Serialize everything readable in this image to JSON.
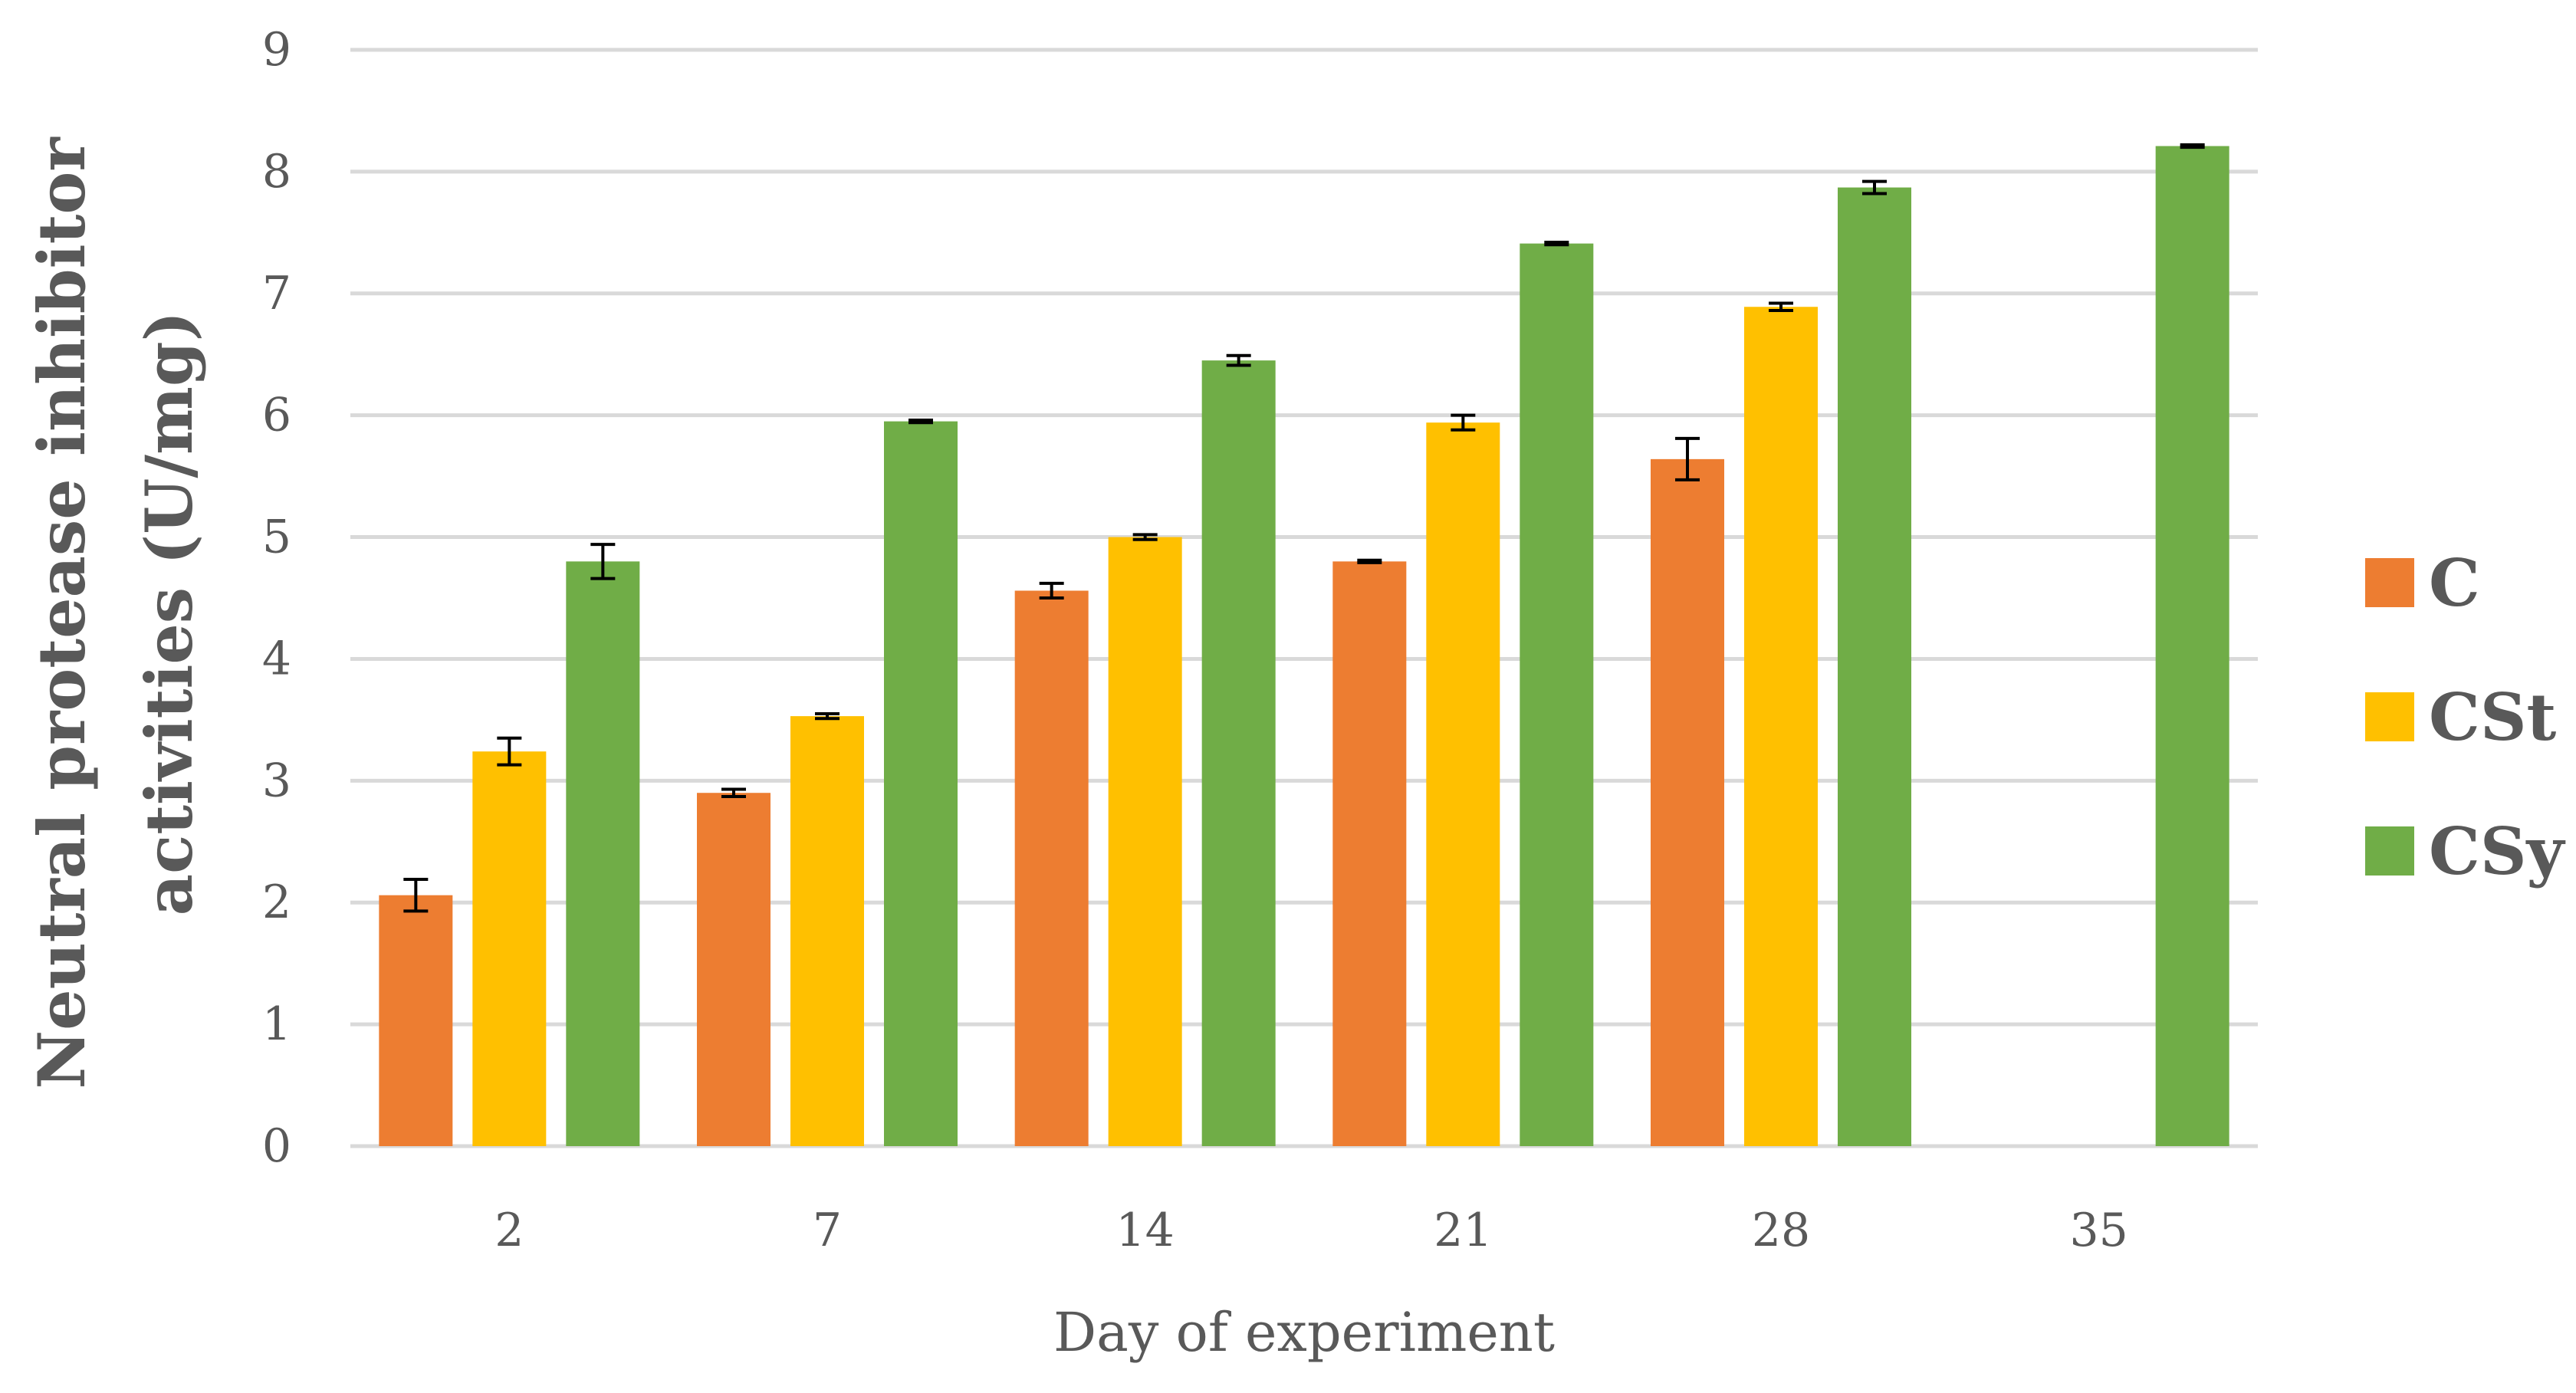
{
  "chart_data": {
    "type": "bar",
    "title": "",
    "xlabel": "Day of experiment",
    "ylabel_lines": [
      "Neutral protease inhibitor",
      "activities (U/mg)"
    ],
    "ylim": [
      0,
      9
    ],
    "yticks": [
      0,
      1,
      2,
      3,
      4,
      5,
      6,
      7,
      8,
      9
    ],
    "categories": [
      "2",
      "7",
      "14",
      "21",
      "28",
      "35"
    ],
    "grid": true,
    "legend_position": "right",
    "series": [
      {
        "name": "C",
        "color": "#ED7D31",
        "values": [
          2.06,
          2.9,
          4.56,
          4.8,
          5.64,
          null
        ],
        "errors": [
          0.13,
          0.03,
          0.06,
          0.01,
          0.17,
          null
        ]
      },
      {
        "name": "CSt",
        "color": "#FFC000",
        "values": [
          3.24,
          3.53,
          5.0,
          5.94,
          6.89,
          null
        ],
        "errors": [
          0.11,
          0.02,
          0.02,
          0.06,
          0.03,
          null
        ]
      },
      {
        "name": "CSy",
        "color": "#70AD47",
        "values": [
          4.8,
          5.95,
          6.45,
          7.41,
          7.87,
          8.21
        ],
        "errors": [
          0.14,
          0.01,
          0.04,
          0.01,
          0.05,
          0.01
        ]
      }
    ]
  }
}
